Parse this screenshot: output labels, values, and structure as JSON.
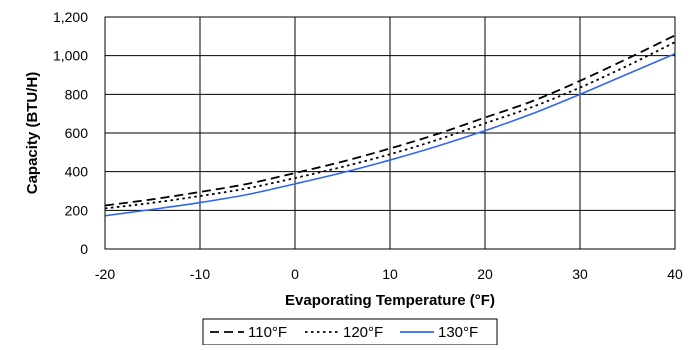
{
  "chart_data": {
    "type": "line",
    "title": "",
    "xlabel": "Evaporating Temperature (°F)",
    "ylabel": "Capacity (BTU/H)",
    "xlim": [
      -20,
      40
    ],
    "ylim": [
      0,
      1200
    ],
    "x_ticks": [
      -20,
      -10,
      0,
      10,
      20,
      30,
      40
    ],
    "y_ticks": [
      0,
      200,
      400,
      600,
      800,
      1000,
      1200
    ],
    "x_tick_labels": [
      "-20",
      "-10",
      "0",
      "10",
      "20",
      "30",
      "40"
    ],
    "y_tick_labels": [
      "0",
      "200",
      "400",
      "600",
      "800",
      "1,000",
      "1,200"
    ],
    "grid": true,
    "legend_position": "bottom",
    "x": [
      -20,
      -15,
      -10,
      -5,
      0,
      5,
      10,
      15,
      20,
      25,
      30,
      35,
      40
    ],
    "series": [
      {
        "name": "110°F",
        "style": "dashed",
        "color": "#000000",
        "values": [
          225,
          257,
          295,
          337,
          393,
          452,
          520,
          595,
          680,
          765,
          870,
          985,
          1105
        ]
      },
      {
        "name": "120°F",
        "style": "dotted",
        "color": "#000000",
        "values": [
          210,
          239,
          274,
          314,
          367,
          425,
          490,
          565,
          650,
          735,
          835,
          948,
          1070
        ]
      },
      {
        "name": "130°F",
        "style": "solid",
        "color": "#3366ee",
        "values": [
          172,
          205,
          240,
          282,
          337,
          395,
          460,
          532,
          612,
          700,
          800,
          905,
          1010
        ]
      }
    ]
  }
}
